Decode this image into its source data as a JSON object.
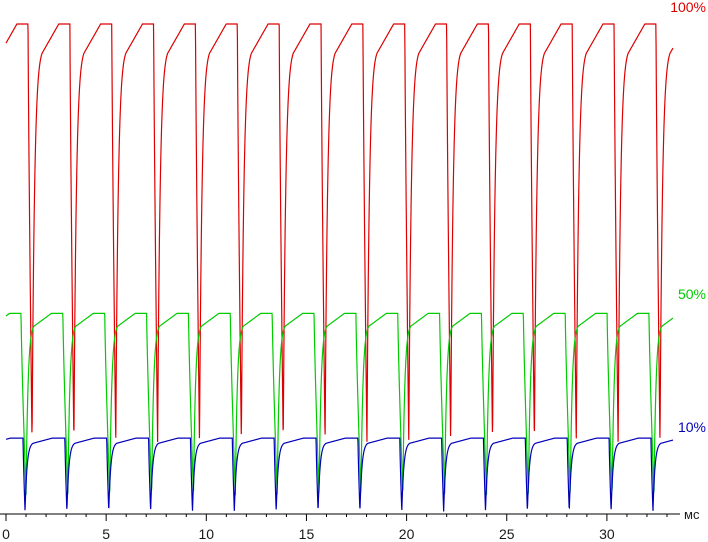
{
  "chart_data": {
    "type": "line",
    "xlabel": "",
    "x_unit": "мс",
    "xlim": [
      0,
      33.3
    ],
    "x_ticks": [
      0,
      5,
      10,
      15,
      20,
      25,
      30
    ],
    "x_tick_labels": [
      "0",
      "5",
      "10",
      "15",
      "20",
      "25",
      "30"
    ],
    "ylim": [
      0,
      100
    ],
    "period_ms": 2.09,
    "grid": false,
    "series": [
      {
        "name": "100%",
        "color": "#dd0000",
        "high": 98,
        "low": 14,
        "first_drop_ms": 1.1,
        "fall_ms": 0.2,
        "rise_ms": 0.5
      },
      {
        "name": "50%",
        "color": "#00cc00",
        "high": 40,
        "low": 3.5,
        "first_drop_ms": 0.75,
        "fall_ms": 0.25,
        "rise_ms": 0.4
      },
      {
        "name": "10%",
        "color": "#0000bb",
        "high": 15,
        "low": 0.3,
        "first_drop_ms": 0.85,
        "fall_ms": 0.1,
        "rise_ms": 0.4
      }
    ]
  }
}
